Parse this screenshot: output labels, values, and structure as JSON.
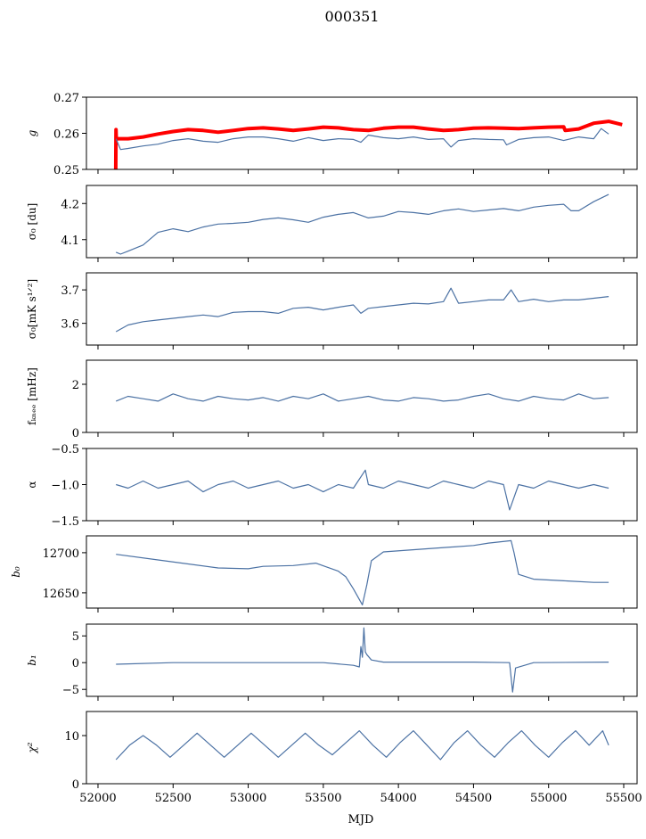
{
  "chart_data": {
    "type": "line",
    "title": "000351",
    "xlabel": "MJD",
    "xlim": [
      51923,
      55589
    ],
    "xticks": [
      52000,
      52500,
      53000,
      53500,
      54000,
      54500,
      55000,
      55500
    ],
    "xtick_labels": [
      "52000",
      "52500",
      "53000",
      "53500",
      "54000",
      "54500",
      "55000",
      "55500"
    ],
    "colors": {
      "data": "#4c72a4",
      "model": "#ff0000"
    },
    "panels": [
      {
        "ylabel": "g",
        "ylim": [
          0.25,
          0.27
        ],
        "yticks": [
          0.25,
          0.26,
          0.27
        ],
        "ytick_labels": [
          "0.25",
          "0.26",
          "0.27"
        ],
        "series": [
          {
            "name": "g-model",
            "color": "#ff0000",
            "width": 4,
            "x": [
              52118,
              52120,
              52122,
              52130,
              52200,
              52300,
              52400,
              52500,
              52600,
              52700,
              52800,
              52900,
              53000,
              53100,
              53200,
              53300,
              53400,
              53500,
              53600,
              53700,
              53800,
              53900,
              54000,
              54100,
              54200,
              54300,
              54400,
              54500,
              54600,
              54700,
              54800,
              54900,
              55000,
              55100,
              55110,
              55200,
              55300,
              55400,
              55490
            ],
            "y": [
              0.25,
              0.261,
              0.2585,
              0.2585,
              0.2585,
              0.259,
              0.2598,
              0.2605,
              0.261,
              0.2608,
              0.2603,
              0.2608,
              0.2613,
              0.2615,
              0.2612,
              0.2608,
              0.2612,
              0.2617,
              0.2615,
              0.261,
              0.2608,
              0.2614,
              0.2617,
              0.2617,
              0.2612,
              0.2608,
              0.261,
              0.2614,
              0.2615,
              0.2614,
              0.2613,
              0.2615,
              0.2617,
              0.2618,
              0.2608,
              0.2612,
              0.2628,
              0.2633,
              0.2624
            ]
          },
          {
            "name": "g-data",
            "color": "#4c72a4",
            "width": 1.2,
            "x": [
              52120,
              52150,
              52200,
              52300,
              52400,
              52500,
              52600,
              52700,
              52800,
              52900,
              53000,
              53100,
              53200,
              53300,
              53400,
              53500,
              53600,
              53700,
              53750,
              53800,
              53900,
              54000,
              54100,
              54200,
              54300,
              54350,
              54400,
              54500,
              54600,
              54700,
              54720,
              54800,
              54900,
              55000,
              55100,
              55200,
              55300,
              55350,
              55400
            ],
            "y": [
              0.2585,
              0.2555,
              0.2558,
              0.2565,
              0.257,
              0.258,
              0.2585,
              0.2578,
              0.2575,
              0.2585,
              0.259,
              0.259,
              0.2585,
              0.2578,
              0.2588,
              0.258,
              0.2585,
              0.2583,
              0.2575,
              0.2595,
              0.2588,
              0.2585,
              0.259,
              0.2583,
              0.2585,
              0.2562,
              0.258,
              0.2585,
              0.2583,
              0.2582,
              0.2568,
              0.2583,
              0.2588,
              0.259,
              0.258,
              0.259,
              0.2585,
              0.2613,
              0.2598
            ]
          }
        ]
      },
      {
        "ylabel": "σ₀ [du]",
        "ylim": [
          4.05,
          4.25
        ],
        "yticks": [
          4.1,
          4.2
        ],
        "ytick_labels": [
          "4.1",
          "4.2"
        ],
        "series": [
          {
            "name": "sigma0-du",
            "color": "#4c72a4",
            "width": 1.2,
            "x": [
              52120,
              52150,
              52200,
              52300,
              52400,
              52500,
              52600,
              52700,
              52800,
              52900,
              53000,
              53100,
              53200,
              53300,
              53400,
              53500,
              53600,
              53700,
              53800,
              53900,
              54000,
              54100,
              54200,
              54300,
              54400,
              54500,
              54600,
              54700,
              54800,
              54900,
              55000,
              55100,
              55150,
              55200,
              55300,
              55400
            ],
            "y": [
              4.065,
              4.06,
              4.068,
              4.085,
              4.12,
              4.13,
              4.122,
              4.135,
              4.143,
              4.145,
              4.148,
              4.156,
              4.16,
              4.155,
              4.148,
              4.162,
              4.17,
              4.175,
              4.16,
              4.165,
              4.178,
              4.175,
              4.17,
              4.18,
              4.185,
              4.178,
              4.182,
              4.186,
              4.18,
              4.19,
              4.195,
              4.198,
              4.18,
              4.18,
              4.205,
              4.225
            ]
          }
        ]
      },
      {
        "ylabel": "σ₀[mK s¹ᐟ²]",
        "ylim": [
          3.535,
          3.751
        ],
        "yticks": [
          3.6,
          3.7
        ],
        "ytick_labels": [
          "3.6",
          "3.7"
        ],
        "series": [
          {
            "name": "sigma0-mk",
            "color": "#4c72a4",
            "width": 1.2,
            "x": [
              52120,
              52200,
              52300,
              52400,
              52500,
              52600,
              52700,
              52800,
              52900,
              53000,
              53100,
              53200,
              53300,
              53400,
              53500,
              53600,
              53700,
              53750,
              53800,
              53900,
              54000,
              54100,
              54200,
              54300,
              54350,
              54400,
              54500,
              54600,
              54700,
              54750,
              54800,
              54900,
              55000,
              55100,
              55200,
              55300,
              55400
            ],
            "y": [
              3.575,
              3.595,
              3.605,
              3.61,
              3.615,
              3.62,
              3.625,
              3.62,
              3.633,
              3.635,
              3.635,
              3.63,
              3.645,
              3.648,
              3.64,
              3.648,
              3.655,
              3.63,
              3.645,
              3.65,
              3.655,
              3.66,
              3.658,
              3.665,
              3.705,
              3.66,
              3.665,
              3.67,
              3.67,
              3.7,
              3.665,
              3.672,
              3.665,
              3.67,
              3.67,
              3.675,
              3.68
            ]
          }
        ]
      },
      {
        "ylabel": "fₖₙₑₑ [mHz]",
        "ylim": [
          0,
          3
        ],
        "yticks": [
          0,
          2
        ],
        "ytick_labels": [
          "0",
          "2"
        ],
        "series": [
          {
            "name": "fknee",
            "color": "#4c72a4",
            "width": 1.2,
            "x": [
              52120,
              52200,
              52300,
              52400,
              52500,
              52600,
              52700,
              52800,
              52900,
              53000,
              53100,
              53200,
              53300,
              53400,
              53500,
              53600,
              53700,
              53800,
              53900,
              54000,
              54100,
              54200,
              54300,
              54400,
              54500,
              54600,
              54700,
              54800,
              54900,
              55000,
              55100,
              55200,
              55300,
              55400
            ],
            "y": [
              1.3,
              1.5,
              1.4,
              1.3,
              1.6,
              1.4,
              1.3,
              1.5,
              1.4,
              1.35,
              1.45,
              1.3,
              1.5,
              1.4,
              1.6,
              1.3,
              1.4,
              1.5,
              1.35,
              1.3,
              1.45,
              1.4,
              1.3,
              1.35,
              1.5,
              1.6,
              1.4,
              1.3,
              1.5,
              1.4,
              1.35,
              1.6,
              1.4,
              1.45
            ]
          }
        ]
      },
      {
        "ylabel": "α",
        "ylim": [
          -1.5,
          -0.5
        ],
        "yticks": [
          -1.5,
          -1.0,
          -0.5
        ],
        "ytick_labels": [
          "−1.5",
          "−1.0",
          "−0.5"
        ],
        "series": [
          {
            "name": "alpha",
            "color": "#4c72a4",
            "width": 1.2,
            "x": [
              52120,
              52200,
              52300,
              52400,
              52500,
              52600,
              52700,
              52800,
              52900,
              53000,
              53100,
              53200,
              53300,
              53400,
              53500,
              53600,
              53700,
              53780,
              53800,
              53900,
              54000,
              54100,
              54200,
              54300,
              54400,
              54500,
              54600,
              54700,
              54740,
              54800,
              54900,
              55000,
              55100,
              55200,
              55300,
              55400
            ],
            "y": [
              -1.0,
              -1.05,
              -0.95,
              -1.05,
              -1.0,
              -0.95,
              -1.1,
              -1.0,
              -0.95,
              -1.05,
              -1.0,
              -0.95,
              -1.05,
              -1.0,
              -1.1,
              -1.0,
              -1.05,
              -0.8,
              -1.0,
              -1.05,
              -0.95,
              -1.0,
              -1.05,
              -0.95,
              -1.0,
              -1.05,
              -0.95,
              -1.0,
              -1.35,
              -1.0,
              -1.05,
              -0.95,
              -1.0,
              -1.05,
              -1.0,
              -1.05
            ]
          }
        ]
      },
      {
        "ylabel": "b₀",
        "ylim": [
          12631,
          12721
        ],
        "yticks": [
          12650,
          12700
        ],
        "ytick_labels": [
          "12650",
          "12700"
        ],
        "series": [
          {
            "name": "b0",
            "color": "#4c72a4",
            "width": 1.2,
            "x": [
              52120,
              52400,
              52800,
              53000,
              53100,
              53300,
              53450,
              53600,
              53650,
              53700,
              53760,
              53790,
              53820,
              53900,
              54200,
              54500,
              54600,
              54750,
              54770,
              54800,
              54900,
              55100,
              55300,
              55400
            ],
            "y": [
              12698,
              12691,
              12681,
              12680,
              12683,
              12684,
              12687,
              12677,
              12670,
              12655,
              12635,
              12660,
              12690,
              12701,
              12705,
              12709,
              12712,
              12715,
              12700,
              12673,
              12667,
              12665,
              12663,
              12663
            ]
          }
        ]
      },
      {
        "ylabel": "b₁",
        "ylim": [
          -6.3,
          7.2
        ],
        "yticks": [
          -5,
          0,
          5
        ],
        "ytick_labels": [
          "−5",
          "0",
          "5"
        ],
        "series": [
          {
            "name": "b1",
            "color": "#4c72a4",
            "width": 1.2,
            "x": [
              52120,
              52500,
              53000,
              53500,
              53700,
              53740,
              53750,
              53760,
              53770,
              53780,
              53790,
              53820,
              53900,
              54500,
              54740,
              54760,
              54780,
              54900,
              55400
            ],
            "y": [
              -0.3,
              0,
              0,
              0,
              -0.5,
              -0.8,
              3,
              1,
              6.5,
              2,
              1.5,
              0.5,
              0.1,
              0.1,
              0,
              -5.5,
              -1,
              0,
              0.1
            ]
          }
        ]
      },
      {
        "ylabel": "χ²",
        "ylim": [
          0,
          15
        ],
        "yticks": [
          0,
          10
        ],
        "ytick_labels": [
          "0",
          "10"
        ],
        "series": [
          {
            "name": "chi2",
            "color": "#4c72a4",
            "width": 1.2,
            "x": [
              52120,
              52210,
              52300,
              52390,
              52480,
              52570,
              52660,
              52750,
              52840,
              52930,
              53020,
              53110,
              53200,
              53290,
              53380,
              53470,
              53560,
              53650,
              53740,
              53830,
              53920,
              54010,
              54100,
              54190,
              54280,
              54370,
              54460,
              54550,
              54640,
              54730,
              54820,
              54910,
              55000,
              55090,
              55180,
              55270,
              55360,
              55400
            ],
            "y": [
              5,
              8,
              10,
              8,
              5.5,
              8,
              10.5,
              8,
              5.5,
              8,
              10.5,
              8,
              5.5,
              8,
              10.5,
              8,
              6,
              8.5,
              11,
              8,
              5.5,
              8.5,
              11,
              8,
              5,
              8.5,
              11,
              8,
              5.5,
              8.5,
              11,
              8,
              5.5,
              8.5,
              11,
              8,
              11,
              8
            ]
          }
        ]
      }
    ]
  }
}
